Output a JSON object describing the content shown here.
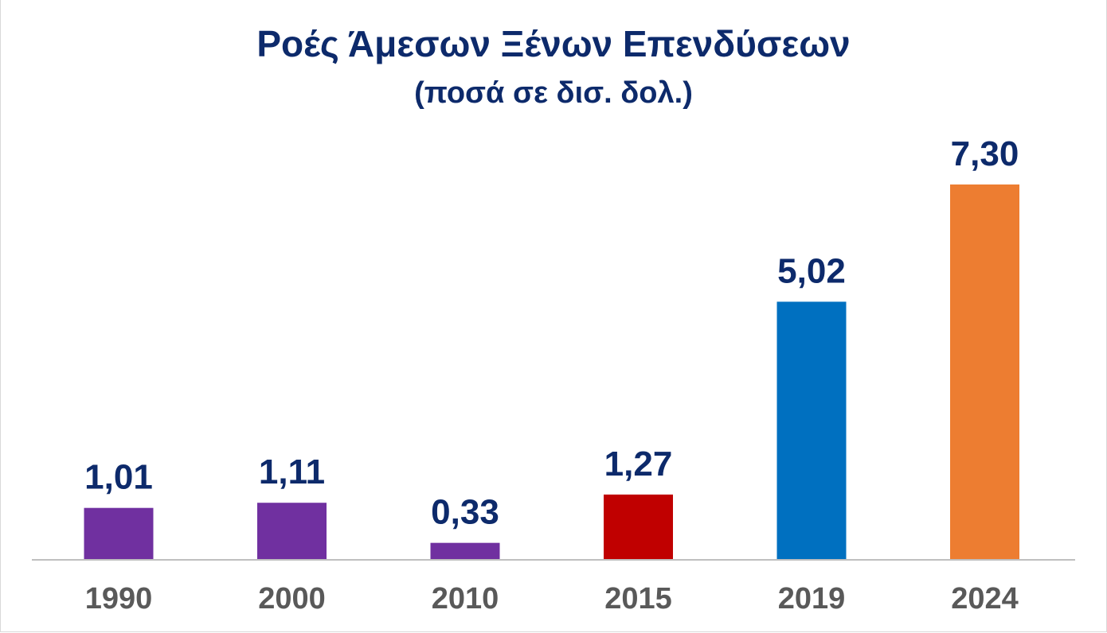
{
  "chart_data": {
    "type": "bar",
    "title": "Ροές Άμεσων Ξένων Επενδύσεων",
    "subtitle": "(ποσά σε δισ. δολ.)",
    "categories": [
      "1990",
      "2000",
      "2010",
      "2015",
      "2019",
      "2024"
    ],
    "values": [
      1.01,
      1.11,
      0.33,
      1.27,
      5.02,
      7.3
    ],
    "data_labels": [
      "1,01",
      "1,11",
      "0,33",
      "1,27",
      "5,02",
      "7,30"
    ],
    "colors": [
      "#7030a0",
      "#7030a0",
      "#7030a0",
      "#c00000",
      "#0070c0",
      "#ed7d31"
    ],
    "ylim": [
      0,
      7.3
    ],
    "grid": false,
    "legend": "none"
  }
}
